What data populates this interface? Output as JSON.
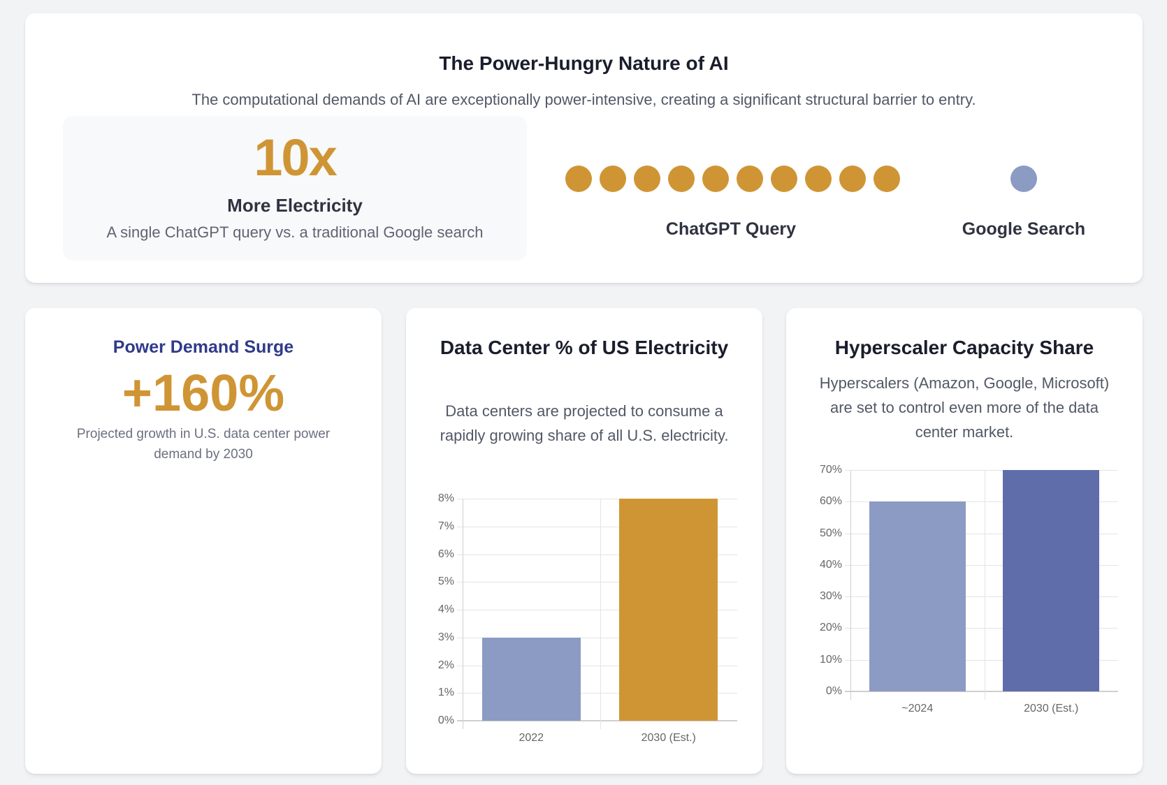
{
  "hero": {
    "title": "The Power-Hungry Nature of AI",
    "subtitle": "The computational demands of AI are exceptionally power-intensive, creating a significant structural barrier to entry.",
    "stat": {
      "value": "10x",
      "label": "More Electricity",
      "description": "A single ChatGPT query vs. a traditional Google search"
    },
    "comparison": {
      "chatgpt": {
        "label": "ChatGPT Query",
        "dots": 10,
        "color": "#cf9535"
      },
      "google": {
        "label": "Google Search",
        "dots": 1,
        "color": "#8c9bc4"
      }
    }
  },
  "power_card": {
    "title": "Power Demand Surge",
    "value": "+160%",
    "description": "Projected growth in U.S. data center power demand by 2030"
  },
  "dc_card": {
    "title": "Data Center % of US Electricity",
    "description": "Data centers are projected to consume a rapidly growing share of all U.S. electricity."
  },
  "hyper_card": {
    "title": "Hyperscaler Capacity Share",
    "description": "Hyperscalers (Amazon, Google, Microsoft) are set to control even more of the data center market."
  },
  "chart_data": [
    {
      "type": "bar",
      "title": "Data Center % of US Electricity",
      "categories": [
        "2022",
        "2030 (Est.)"
      ],
      "values": [
        3,
        8
      ],
      "colors": [
        "#8c9bc4",
        "#cf9535"
      ],
      "yticks": [
        "0%",
        "1%",
        "2%",
        "3%",
        "4%",
        "5%",
        "6%",
        "7%",
        "8%"
      ],
      "ylim": [
        0,
        8
      ],
      "xlabel": "",
      "ylabel": "",
      "grid": true,
      "legend": "none"
    },
    {
      "type": "bar",
      "title": "Hyperscaler Capacity Share",
      "categories": [
        "~2024",
        "2030 (Est.)"
      ],
      "values": [
        60,
        70
      ],
      "colors": [
        "#8c9bc4",
        "#5f6eab"
      ],
      "yticks": [
        "0%",
        "10%",
        "20%",
        "30%",
        "40%",
        "50%",
        "60%",
        "70%"
      ],
      "ylim": [
        0,
        70
      ],
      "xlabel": "",
      "ylabel": "",
      "grid": true,
      "legend": "none"
    }
  ]
}
